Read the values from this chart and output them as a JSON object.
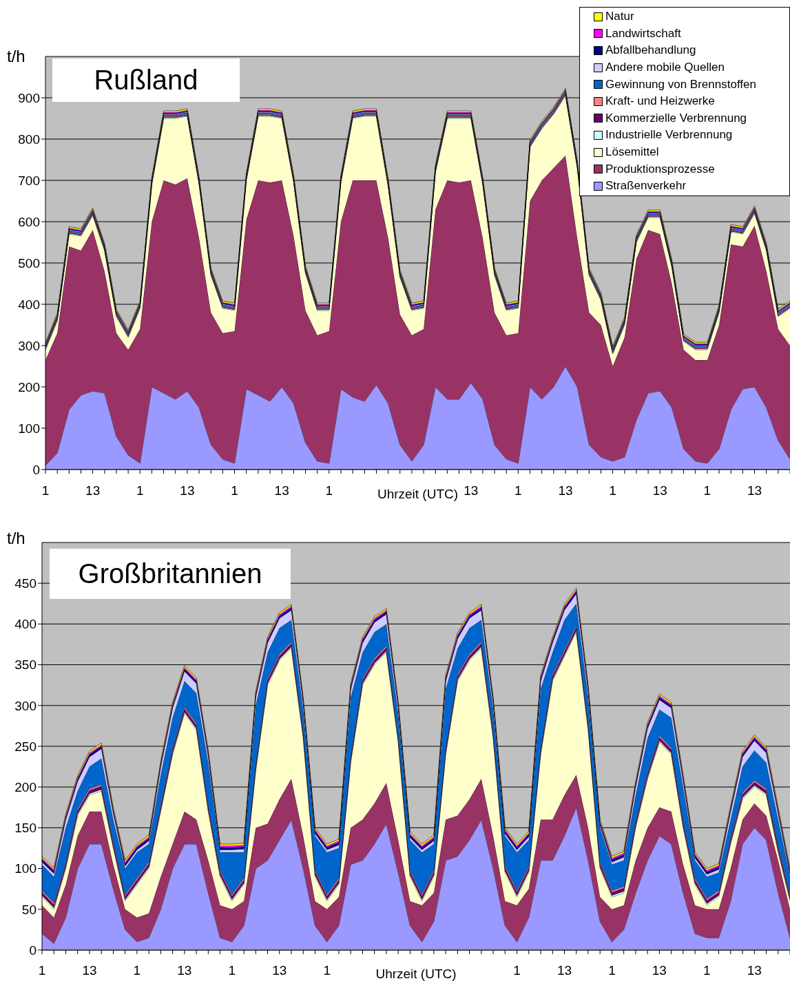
{
  "chart_data": [
    {
      "type": "area",
      "title": "Rußland",
      "xlabel": "Uhrzeit (UTC)",
      "ylabel": "t/h",
      "stacked": true,
      "grid": "y",
      "legend": "top right",
      "ylim": [
        0,
        1000
      ],
      "yticks": [
        0,
        100,
        200,
        300,
        400,
        500,
        600,
        700,
        800,
        900
      ],
      "categories": [
        "1",
        null,
        null,
        null,
        "13",
        null,
        null,
        null,
        "1",
        null,
        null,
        null,
        "13",
        null,
        null,
        null,
        "1",
        null,
        null,
        null,
        "13",
        null,
        null,
        null,
        "1",
        null,
        null,
        null,
        null,
        null,
        null,
        null,
        null,
        null,
        null,
        null,
        "13",
        null,
        null,
        null,
        "1",
        null,
        null,
        null,
        "13",
        null,
        null,
        null,
        "1",
        null,
        null,
        null,
        "13",
        null,
        null,
        null,
        "1",
        null,
        null,
        null,
        "13",
        null,
        null,
        null
      ],
      "series": [
        {
          "name": "Straßenverkehr",
          "color": "#9999ff",
          "values": [
            10,
            40,
            145,
            180,
            190,
            185,
            80,
            35,
            15,
            200,
            185,
            170,
            190,
            150,
            60,
            25,
            15,
            195,
            180,
            165,
            200,
            160,
            65,
            20,
            15,
            195,
            175,
            165,
            205,
            160,
            60,
            20,
            60,
            200,
            170,
            170,
            210,
            170,
            60,
            25,
            15,
            200,
            170,
            200,
            250,
            200,
            60,
            30,
            20,
            30,
            120,
            185,
            190,
            150,
            50,
            20,
            15,
            50,
            145,
            195,
            200,
            150,
            70,
            25
          ]
        },
        {
          "name": "Produktionsprozesse",
          "color": "#993366",
          "values": [
            255,
            290,
            395,
            350,
            390,
            295,
            250,
            255,
            325,
            400,
            515,
            520,
            515,
            410,
            320,
            305,
            320,
            410,
            520,
            530,
            500,
            405,
            320,
            305,
            320,
            405,
            525,
            535,
            495,
            400,
            315,
            305,
            280,
            430,
            530,
            525,
            490,
            390,
            320,
            300,
            315,
            450,
            530,
            530,
            510,
            360,
            320,
            320,
            230,
            290,
            390,
            395,
            380,
            300,
            240,
            245,
            250,
            300,
            400,
            345,
            390,
            330,
            270,
            275
          ]
        },
        {
          "name": "Lösemittel",
          "color": "#ffffcc",
          "values": [
            25,
            30,
            30,
            35,
            35,
            50,
            40,
            30,
            50,
            90,
            150,
            160,
            150,
            130,
            90,
            60,
            50,
            95,
            155,
            160,
            150,
            130,
            90,
            60,
            50,
            95,
            150,
            155,
            155,
            125,
            90,
            60,
            50,
            90,
            150,
            155,
            150,
            130,
            90,
            60,
            60,
            130,
            125,
            130,
            145,
            170,
            90,
            60,
            30,
            30,
            40,
            30,
            40,
            40,
            20,
            25,
            25,
            30,
            30,
            30,
            30,
            50,
            30,
            90
          ]
        },
        {
          "name": "Industrielle Verbrennung",
          "color": "#ccffff",
          "values": [
            2,
            2,
            2,
            2,
            2,
            2,
            2,
            2,
            2,
            2,
            2,
            2,
            2,
            2,
            2,
            2,
            2,
            2,
            2,
            2,
            2,
            2,
            2,
            2,
            2,
            2,
            2,
            2,
            2,
            2,
            2,
            2,
            2,
            2,
            2,
            2,
            2,
            2,
            2,
            2,
            2,
            2,
            2,
            2,
            2,
            2,
            2,
            2,
            2,
            2,
            2,
            2,
            2,
            2,
            2,
            2,
            2,
            2,
            2,
            2,
            2,
            2,
            2,
            2
          ]
        },
        {
          "name": "Kommerzielle Verbrennung",
          "color": "#660066",
          "values": [
            2,
            2,
            2,
            2,
            2,
            2,
            2,
            2,
            2,
            2,
            2,
            2,
            2,
            2,
            2,
            2,
            2,
            2,
            2,
            2,
            2,
            2,
            2,
            2,
            2,
            2,
            2,
            2,
            2,
            2,
            2,
            2,
            2,
            2,
            2,
            2,
            2,
            2,
            2,
            2,
            2,
            2,
            2,
            2,
            2,
            2,
            2,
            2,
            2,
            2,
            2,
            2,
            2,
            2,
            2,
            2,
            2,
            2,
            2,
            2,
            2,
            2,
            2,
            2
          ]
        },
        {
          "name": "Kraft- und Heizwerke",
          "color": "#ff8080",
          "values": [
            2,
            2,
            2,
            2,
            2,
            2,
            2,
            2,
            2,
            2,
            2,
            2,
            2,
            2,
            2,
            2,
            2,
            2,
            2,
            2,
            2,
            2,
            2,
            2,
            2,
            2,
            2,
            2,
            2,
            2,
            2,
            2,
            2,
            2,
            2,
            2,
            2,
            2,
            2,
            2,
            2,
            2,
            2,
            2,
            2,
            2,
            2,
            2,
            2,
            2,
            2,
            2,
            2,
            2,
            2,
            2,
            2,
            2,
            2,
            2,
            2,
            2,
            2,
            2
          ]
        },
        {
          "name": "Gewinnung von Brennstoffen",
          "color": "#0066cc",
          "values": [
            3,
            3,
            3,
            3,
            3,
            3,
            3,
            3,
            3,
            3,
            3,
            3,
            3,
            3,
            3,
            3,
            3,
            3,
            3,
            3,
            3,
            3,
            3,
            3,
            3,
            3,
            3,
            3,
            3,
            3,
            3,
            3,
            3,
            3,
            3,
            3,
            3,
            3,
            3,
            3,
            3,
            3,
            3,
            3,
            3,
            3,
            3,
            3,
            3,
            3,
            3,
            3,
            3,
            3,
            3,
            3,
            3,
            3,
            3,
            3,
            3,
            3,
            3,
            3
          ]
        },
        {
          "name": "Andere mobile Quellen",
          "color": "#ccccff",
          "values": [
            2,
            2,
            2,
            2,
            2,
            2,
            2,
            2,
            2,
            2,
            2,
            2,
            2,
            2,
            2,
            2,
            2,
            2,
            2,
            2,
            2,
            2,
            2,
            2,
            2,
            2,
            2,
            2,
            2,
            2,
            2,
            2,
            2,
            2,
            2,
            2,
            2,
            2,
            2,
            2,
            2,
            2,
            2,
            2,
            2,
            2,
            2,
            2,
            2,
            2,
            2,
            2,
            2,
            2,
            2,
            2,
            2,
            2,
            2,
            2,
            2,
            2,
            2,
            2
          ]
        },
        {
          "name": "Abfallbehandlung",
          "color": "#000080",
          "values": [
            2,
            2,
            2,
            2,
            2,
            2,
            2,
            2,
            2,
            2,
            2,
            2,
            2,
            2,
            2,
            2,
            2,
            2,
            2,
            2,
            2,
            2,
            2,
            2,
            2,
            2,
            2,
            2,
            2,
            2,
            2,
            2,
            2,
            2,
            2,
            2,
            2,
            2,
            2,
            2,
            2,
            2,
            2,
            2,
            2,
            2,
            2,
            2,
            2,
            2,
            2,
            2,
            2,
            2,
            2,
            2,
            2,
            2,
            2,
            2,
            2,
            2,
            2,
            2
          ]
        },
        {
          "name": "Landwirtschaft",
          "color": "#ff00ff",
          "values": [
            2,
            2,
            2,
            2,
            2,
            2,
            2,
            2,
            2,
            2,
            2,
            2,
            2,
            2,
            2,
            2,
            2,
            2,
            2,
            2,
            2,
            2,
            2,
            2,
            2,
            2,
            2,
            2,
            2,
            2,
            2,
            2,
            2,
            2,
            2,
            2,
            2,
            2,
            2,
            2,
            2,
            2,
            2,
            2,
            2,
            2,
            2,
            2,
            2,
            2,
            2,
            2,
            2,
            2,
            2,
            2,
            2,
            2,
            2,
            2,
            2,
            2,
            2,
            2
          ]
        },
        {
          "name": "Natur",
          "color": "#ffff00",
          "values": [
            3,
            3,
            3,
            3,
            3,
            3,
            3,
            3,
            3,
            3,
            3,
            3,
            3,
            3,
            3,
            3,
            3,
            3,
            3,
            3,
            3,
            3,
            3,
            3,
            3,
            3,
            3,
            3,
            3,
            3,
            3,
            3,
            3,
            3,
            3,
            3,
            3,
            3,
            3,
            3,
            3,
            3,
            3,
            3,
            3,
            3,
            3,
            3,
            3,
            3,
            3,
            3,
            3,
            3,
            3,
            3,
            3,
            3,
            3,
            3,
            3,
            3,
            3,
            3
          ]
        }
      ]
    },
    {
      "type": "area",
      "title": "Großbritannien",
      "xlabel": "Uhrzeit (UTC)",
      "ylabel": "t/h",
      "stacked": true,
      "grid": "y",
      "ylim": [
        0,
        500
      ],
      "yticks": [
        0,
        50,
        100,
        150,
        200,
        250,
        300,
        350,
        400,
        450
      ],
      "categories": [
        "1",
        null,
        null,
        null,
        "13",
        null,
        null,
        null,
        "1",
        null,
        null,
        null,
        "13",
        null,
        null,
        null,
        "1",
        null,
        null,
        null,
        "13",
        null,
        null,
        null,
        "1",
        null,
        null,
        null,
        null,
        null,
        null,
        null,
        null,
        null,
        null,
        null,
        null,
        null,
        null,
        null,
        "1",
        null,
        null,
        null,
        "13",
        null,
        null,
        null,
        "1",
        null,
        null,
        null,
        "13",
        null,
        null,
        null,
        "1",
        null,
        null,
        null,
        "13",
        null,
        null,
        null
      ],
      "series": [
        {
          "color": "#9999ff",
          "values": [
            20,
            8,
            40,
            100,
            130,
            130,
            75,
            25,
            10,
            15,
            50,
            100,
            130,
            130,
            70,
            15,
            10,
            30,
            100,
            110,
            135,
            160,
            100,
            30,
            10,
            30,
            105,
            110,
            130,
            155,
            95,
            30,
            10,
            35,
            110,
            115,
            135,
            160,
            100,
            30,
            10,
            40,
            110,
            110,
            140,
            175,
            110,
            35,
            10,
            25,
            70,
            110,
            140,
            130,
            70,
            20,
            15,
            15,
            60,
            130,
            150,
            135,
            70,
            15
          ]
        },
        {
          "color": "#993366",
          "values": [
            35,
            32,
            40,
            40,
            40,
            40,
            30,
            25,
            30,
            30,
            40,
            30,
            40,
            30,
            40,
            40,
            40,
            30,
            50,
            45,
            50,
            50,
            40,
            30,
            40,
            35,
            45,
            50,
            50,
            50,
            40,
            30,
            45,
            35,
            50,
            50,
            50,
            50,
            40,
            30,
            45,
            35,
            50,
            50,
            50,
            40,
            40,
            30,
            40,
            30,
            40,
            40,
            35,
            40,
            35,
            35,
            35,
            35,
            40,
            30,
            30,
            30,
            40,
            35
          ]
        },
        {
          "color": "#ffffcc",
          "values": [
            10,
            10,
            20,
            25,
            20,
            25,
            20,
            10,
            40,
            55,
            80,
            110,
            120,
            110,
            60,
            35,
            10,
            20,
            70,
            170,
            170,
            160,
            120,
            30,
            10,
            15,
            80,
            165,
            170,
            160,
            120,
            30,
            5,
            20,
            80,
            165,
            170,
            160,
            120,
            35,
            10,
            20,
            80,
            170,
            170,
            175,
            120,
            35,
            15,
            15,
            40,
            60,
            80,
            70,
            45,
            25,
            5,
            15,
            30,
            25,
            20,
            25,
            10,
            10
          ]
        },
        {
          "color": "#ccffff",
          "values": [
            2,
            2,
            2,
            2,
            2,
            2,
            2,
            2,
            2,
            2,
            2,
            2,
            2,
            2,
            2,
            2,
            2,
            2,
            2,
            2,
            2,
            2,
            2,
            2,
            2,
            2,
            2,
            2,
            2,
            2,
            2,
            2,
            2,
            2,
            2,
            2,
            2,
            2,
            2,
            2,
            2,
            2,
            2,
            2,
            2,
            2,
            2,
            2,
            2,
            2,
            2,
            2,
            2,
            2,
            2,
            2,
            2,
            2,
            2,
            2,
            2,
            2,
            2,
            2
          ]
        },
        {
          "color": "#660066",
          "values": [
            4,
            4,
            4,
            4,
            4,
            4,
            4,
            4,
            4,
            4,
            4,
            4,
            4,
            4,
            4,
            4,
            4,
            4,
            4,
            4,
            4,
            4,
            4,
            4,
            4,
            4,
            4,
            4,
            4,
            4,
            4,
            4,
            4,
            4,
            4,
            4,
            4,
            4,
            4,
            4,
            4,
            4,
            4,
            4,
            4,
            4,
            4,
            4,
            4,
            4,
            4,
            4,
            4,
            4,
            4,
            4,
            4,
            4,
            4,
            4,
            4,
            4,
            4,
            4
          ]
        },
        {
          "color": "#ff8080",
          "values": [
            2,
            2,
            2,
            2,
            2,
            2,
            2,
            2,
            2,
            2,
            2,
            2,
            2,
            2,
            2,
            2,
            2,
            2,
            2,
            2,
            2,
            2,
            2,
            2,
            2,
            2,
            2,
            2,
            2,
            2,
            2,
            2,
            2,
            2,
            2,
            2,
            2,
            2,
            2,
            2,
            2,
            2,
            2,
            2,
            2,
            2,
            2,
            2,
            2,
            2,
            2,
            2,
            2,
            2,
            2,
            2,
            2,
            2,
            2,
            2,
            2,
            2,
            2,
            2
          ]
        },
        {
          "color": "#0066cc",
          "values": [
            32,
            32,
            42,
            22,
            27,
            32,
            27,
            32,
            32,
            22,
            37,
            37,
            32,
            37,
            52,
            22,
            52,
            32,
            72,
            32,
            32,
            27,
            27,
            42,
            52,
            37,
            72,
            32,
            32,
            27,
            27,
            37,
            52,
            32,
            72,
            32,
            32,
            27,
            27,
            37,
            47,
            32,
            72,
            27,
            37,
            27,
            32,
            42,
            32,
            32,
            32,
            42,
            32,
            37,
            42,
            22,
            27,
            22,
            22,
            32,
            37,
            32,
            32,
            22
          ]
        },
        {
          "color": "#ccccff",
          "values": [
            3,
            4,
            10,
            12,
            12,
            12,
            8,
            3,
            3,
            4,
            10,
            12,
            12,
            12,
            8,
            3,
            3,
            4,
            10,
            12,
            12,
            12,
            8,
            3,
            3,
            4,
            10,
            12,
            12,
            12,
            8,
            3,
            3,
            4,
            10,
            12,
            12,
            12,
            8,
            3,
            3,
            4,
            10,
            12,
            12,
            12,
            8,
            3,
            3,
            4,
            10,
            12,
            12,
            12,
            8,
            3,
            3,
            4,
            10,
            12,
            12,
            12,
            8,
            3
          ]
        },
        {
          "color": "#000080",
          "values": [
            3,
            3,
            3,
            3,
            3,
            3,
            3,
            3,
            3,
            3,
            3,
            3,
            3,
            3,
            3,
            3,
            3,
            3,
            3,
            3,
            3,
            3,
            3,
            3,
            3,
            3,
            3,
            3,
            3,
            3,
            3,
            3,
            3,
            3,
            3,
            3,
            3,
            3,
            3,
            3,
            3,
            3,
            3,
            3,
            3,
            3,
            3,
            3,
            3,
            3,
            3,
            3,
            3,
            3,
            3,
            3,
            3,
            3,
            3,
            3,
            3,
            3,
            3,
            3
          ]
        },
        {
          "color": "#ff00ff",
          "values": [
            2,
            2,
            2,
            2,
            2,
            2,
            2,
            2,
            2,
            2,
            2,
            2,
            2,
            2,
            2,
            2,
            2,
            2,
            2,
            2,
            2,
            2,
            2,
            2,
            2,
            2,
            2,
            2,
            2,
            2,
            2,
            2,
            2,
            2,
            2,
            2,
            2,
            2,
            2,
            2,
            2,
            2,
            2,
            2,
            2,
            2,
            2,
            2,
            2,
            2,
            2,
            2,
            2,
            2,
            2,
            2,
            2,
            2,
            2,
            2,
            2,
            2,
            2,
            2
          ]
        },
        {
          "color": "#ffff00",
          "values": [
            2,
            2,
            2,
            2,
            2,
            2,
            2,
            2,
            2,
            2,
            2,
            2,
            2,
            2,
            2,
            2,
            2,
            2,
            2,
            2,
            2,
            2,
            2,
            2,
            2,
            2,
            2,
            2,
            2,
            2,
            2,
            2,
            2,
            2,
            2,
            2,
            2,
            2,
            2,
            2,
            2,
            2,
            2,
            2,
            2,
            2,
            2,
            2,
            2,
            2,
            2,
            2,
            2,
            2,
            2,
            2,
            2,
            2,
            2,
            2,
            2,
            2,
            2,
            2
          ]
        }
      ]
    }
  ]
}
